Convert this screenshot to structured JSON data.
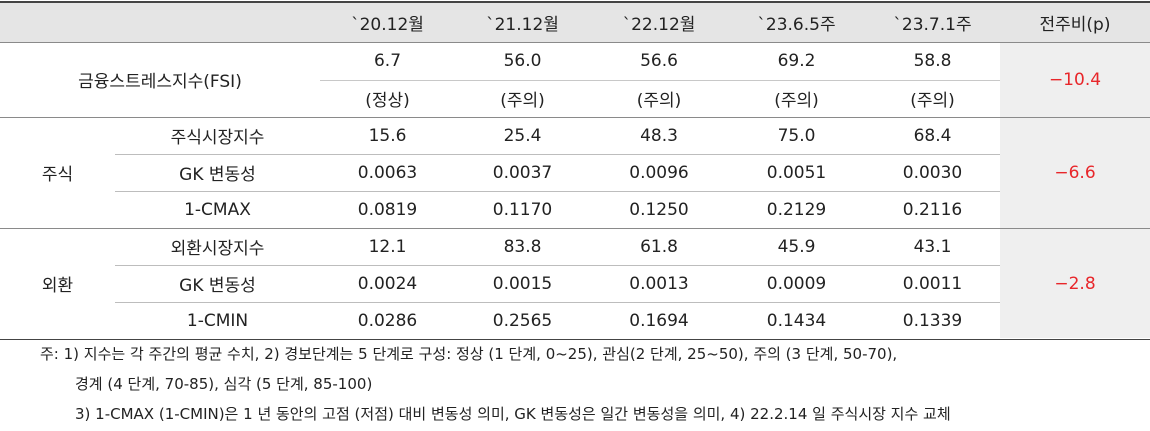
{
  "table": {
    "header": [
      "`20.12월",
      "`21.12월",
      "`22.12월",
      "`23.6.5주",
      "`23.7.1주",
      "전주비(p)"
    ],
    "fsi": {
      "label": "금융스트레스지수(FSI)",
      "values": [
        "6.7",
        "56.0",
        "56.6",
        "69.2",
        "58.8"
      ],
      "status": [
        "(정상)",
        "(주의)",
        "(주의)",
        "(주의)",
        "(주의)"
      ],
      "change": "−10.4"
    },
    "groups": [
      {
        "label": "주식",
        "change": "−6.6",
        "rows": [
          {
            "label": "주식시장지수",
            "values": [
              "15.6",
              "25.4",
              "48.3",
              "75.0",
              "68.4"
            ]
          },
          {
            "label": "GK 변동성",
            "values": [
              "0.0063",
              "0.0037",
              "0.0096",
              "0.0051",
              "0.0030"
            ]
          },
          {
            "label": "1-CMAX",
            "values": [
              "0.0819",
              "0.1170",
              "0.1250",
              "0.2129",
              "0.2116"
            ]
          }
        ]
      },
      {
        "label": "외환",
        "change": "−2.8",
        "rows": [
          {
            "label": "외환시장지수",
            "values": [
              "12.1",
              "83.8",
              "61.8",
              "45.9",
              "43.1"
            ]
          },
          {
            "label": "GK 변동성",
            "values": [
              "0.0024",
              "0.0015",
              "0.0013",
              "0.0009",
              "0.0011"
            ]
          },
          {
            "label": "1-CMIN",
            "values": [
              "0.0286",
              "0.2565",
              "0.1694",
              "0.1434",
              "0.1339"
            ]
          }
        ]
      }
    ]
  },
  "notes": [
    "주: 1) 지수는 각 주간의 평균 수치, 2) 경보단계는 5 단계로 구성: 정상 (1 단계, 0~25), 관심(2 단계, 25~50), 주의 (3 단계, 50-70),",
    "경계 (4 단계, 70-85), 심각 (5 단계, 85-100)",
    "3) 1-CMAX (1-CMIN)은 1 년 동안의 고점 (저점) 대비 변동성 의미, GK 변동성은 일간 변동성을 의미, 4) 22.2.14 일 주식시장 지수 교체"
  ]
}
